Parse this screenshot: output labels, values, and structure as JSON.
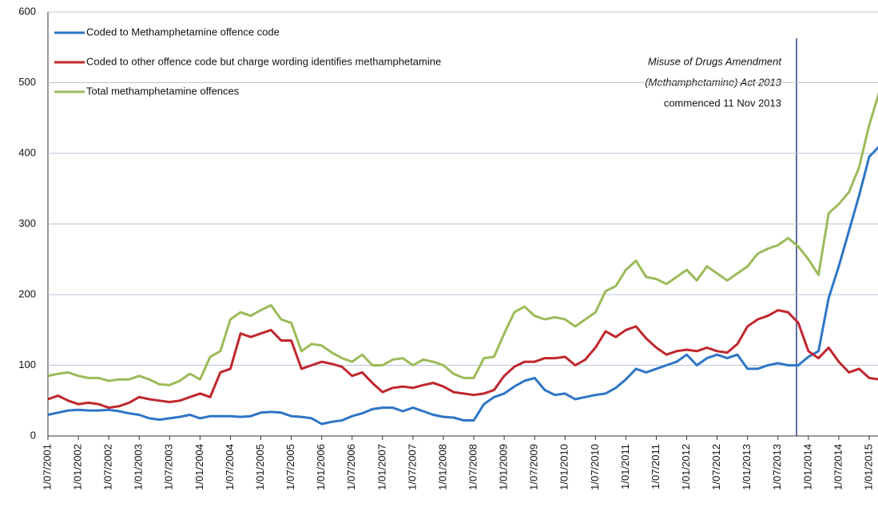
{
  "chart_data": {
    "type": "line",
    "categories": [
      "1/07/2001",
      null,
      null,
      "1/01/2002",
      null,
      null,
      "1/07/2002",
      null,
      null,
      "1/01/2003",
      null,
      null,
      "1/07/2003",
      null,
      null,
      "1/01/2004",
      null,
      null,
      "1/07/2004",
      null,
      null,
      "1/01/2005",
      null,
      null,
      "1/07/2005",
      null,
      null,
      "1/01/2006",
      null,
      null,
      "1/07/2006",
      null,
      null,
      "1/01/2007",
      null,
      null,
      "1/07/2007",
      null,
      null,
      "1/01/2008",
      null,
      null,
      "1/07/2008",
      null,
      null,
      "1/01/2009",
      null,
      null,
      "1/07/2009",
      null,
      null,
      "1/01/2010",
      null,
      null,
      "1/07/2010",
      null,
      null,
      "1/01/2011",
      null,
      null,
      "1/07/2011",
      null,
      null,
      "1/01/2012",
      null,
      null,
      "1/07/2012",
      null,
      null,
      "1/01/2013",
      null,
      null,
      "1/07/2013",
      null,
      null,
      "1/01/2014",
      null,
      null,
      "1/07/2014",
      null,
      null,
      "1/01/2015",
      null
    ],
    "series": [
      {
        "name": "Coded to Methamphetamine offence code",
        "color": "#2e75c6",
        "values": [
          30,
          33,
          36,
          37,
          36,
          36,
          37,
          35,
          32,
          30,
          25,
          23,
          25,
          27,
          30,
          25,
          28,
          28,
          28,
          27,
          28,
          33,
          34,
          33,
          28,
          27,
          25,
          17,
          20,
          22,
          28,
          32,
          38,
          40,
          40,
          35,
          40,
          35,
          30,
          27,
          26,
          22,
          22,
          45,
          55,
          60,
          70,
          78,
          82,
          65,
          58,
          60,
          52,
          55,
          58,
          60,
          68,
          80,
          95,
          90,
          95,
          100,
          105,
          115,
          100,
          110,
          115,
          110,
          115,
          95,
          95,
          100,
          103,
          100,
          100,
          112,
          120,
          195,
          240,
          290,
          340,
          395,
          410
        ]
      },
      {
        "name": "Coded to other offence code but charge wording identifies methamphetamine",
        "color": "#c0262d",
        "values": [
          52,
          57,
          50,
          45,
          47,
          45,
          40,
          42,
          47,
          55,
          52,
          50,
          48,
          50,
          55,
          60,
          55,
          90,
          95,
          145,
          140,
          145,
          150,
          135,
          135,
          95,
          100,
          105,
          102,
          98,
          85,
          90,
          75,
          62,
          68,
          70,
          68,
          72,
          75,
          70,
          62,
          60,
          58,
          60,
          65,
          85,
          98,
          105,
          105,
          110,
          110,
          112,
          100,
          108,
          125,
          148,
          140,
          150,
          155,
          138,
          125,
          115,
          120,
          122,
          120,
          125,
          120,
          118,
          130,
          155,
          165,
          170,
          178,
          175,
          160,
          120,
          110,
          125,
          105,
          90,
          95,
          82,
          80
        ]
      },
      {
        "name": "Total methamphetamine offences",
        "color": "#9bbb59",
        "values": [
          85,
          88,
          90,
          85,
          82,
          82,
          78,
          80,
          80,
          85,
          80,
          73,
          72,
          78,
          88,
          80,
          112,
          120,
          165,
          175,
          170,
          178,
          185,
          165,
          160,
          120,
          130,
          128,
          118,
          110,
          105,
          115,
          100,
          100,
          108,
          110,
          100,
          108,
          105,
          100,
          88,
          82,
          82,
          110,
          112,
          145,
          175,
          183,
          170,
          165,
          168,
          165,
          155,
          165,
          175,
          205,
          212,
          235,
          248,
          225,
          222,
          215,
          225,
          235,
          220,
          240,
          230,
          220,
          230,
          240,
          258,
          265,
          270,
          280,
          268,
          250,
          228,
          315,
          328,
          345,
          380,
          440,
          487
        ]
      }
    ],
    "annotation": [
      "Misuse of Drugs Amendment",
      "(Methamphetamine) Act 2013",
      "commenced 11 Nov 2013"
    ],
    "ylim": [
      0,
      600
    ],
    "yticks": [
      0,
      100,
      200,
      300,
      400,
      500,
      600
    ],
    "grid": true
  }
}
